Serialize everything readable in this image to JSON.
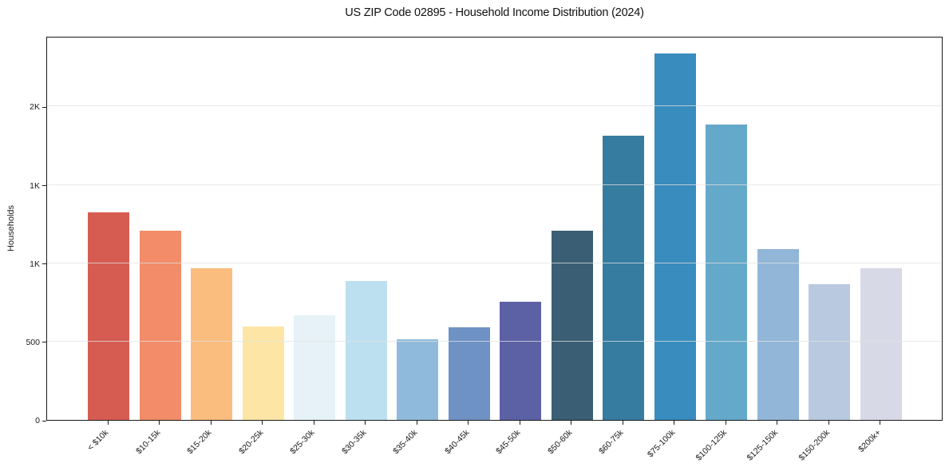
{
  "chart_data": {
    "type": "bar",
    "title": "US ZIP Code 02895 - Household Income Distribution (2024)",
    "xlabel": "",
    "ylabel": "Households",
    "categories": [
      "< $10k",
      "$10-15k",
      "$15-20k",
      "$20-25k",
      "$25-30k",
      "$30-35k",
      "$35-40k",
      "$40-45k",
      "$45-50k",
      "$50-60k",
      "$60-75k",
      "$75-100k",
      "$100-125k",
      "$125-150k",
      "$150-200k",
      "$200k+"
    ],
    "values": [
      1325,
      1205,
      970,
      595,
      670,
      885,
      515,
      590,
      755,
      1205,
      1815,
      2340,
      1885,
      1090,
      865,
      970
    ],
    "bar_colors": [
      "#d65c52",
      "#f28c69",
      "#fabd7e",
      "#fde6a5",
      "#e6f2f8",
      "#bde0f0",
      "#8fbadc",
      "#6e92c4",
      "#5c61a5",
      "#3a5e73",
      "#367ca0",
      "#388cbe",
      "#64a8ca",
      "#92b6d8",
      "#b9c9df",
      "#d7d9e7"
    ],
    "ylim": [
      0,
      2450
    ],
    "yticks": {
      "values": [
        0,
        500,
        1000,
        1500,
        2000
      ],
      "labels": [
        "0",
        "500",
        "1K",
        "1K",
        "2K"
      ]
    },
    "grid": "horizontal",
    "legend": "none",
    "colors": {
      "background": "#ffffff",
      "spine": "#1a1a1a",
      "gridline": "#e4e4e4",
      "text": "#1a1a1a"
    }
  }
}
